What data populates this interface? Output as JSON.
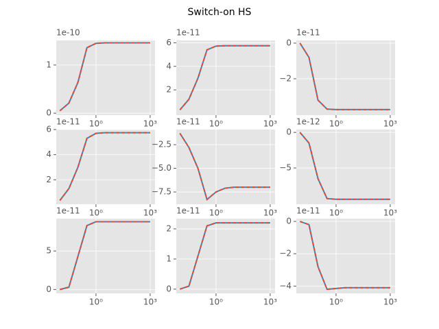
{
  "title": "Switch-on HS",
  "chart_data": [
    {
      "type": "line",
      "offset_label": "1e-10",
      "log_x": true,
      "grid": true,
      "x": [
        0.01,
        0.0316,
        0.1,
        0.316,
        1,
        3.16,
        10,
        31.6,
        100,
        1000
      ],
      "xlim": [
        0.0063,
        1860
      ],
      "xticks": [
        {
          "value": 1,
          "label": "10⁰"
        },
        {
          "value": 1000,
          "label": "10³"
        }
      ],
      "ylim": [
        -0.04,
        1.51
      ],
      "yticks": [
        0,
        1
      ],
      "series": [
        {
          "color": "#348ABD",
          "values": [
            0.05,
            0.21,
            0.64,
            1.36,
            1.45,
            1.46,
            1.46,
            1.46,
            1.46,
            1.46
          ]
        },
        {
          "color": "#E24A33",
          "dashed": true,
          "values": [
            0.05,
            0.21,
            0.64,
            1.36,
            1.45,
            1.46,
            1.46,
            1.46,
            1.46,
            1.46
          ]
        }
      ]
    },
    {
      "type": "line",
      "offset_label": "1e-11",
      "log_x": true,
      "grid": true,
      "x": [
        0.01,
        0.0316,
        0.1,
        0.316,
        1,
        3.16,
        10,
        31.6,
        100,
        1000
      ],
      "xlim": [
        0.0063,
        1860
      ],
      "xticks": [
        {
          "value": 1,
          "label": "10⁰"
        },
        {
          "value": 1000,
          "label": "10³"
        }
      ],
      "ylim": [
        -0.15,
        6.2
      ],
      "yticks": [
        2,
        4,
        6
      ],
      "series": [
        {
          "color": "#348ABD",
          "values": [
            0.3,
            1.2,
            3.0,
            5.4,
            5.72,
            5.75,
            5.75,
            5.75,
            5.75,
            5.75
          ]
        },
        {
          "color": "#E24A33",
          "dashed": true,
          "values": [
            0.3,
            1.2,
            3.0,
            5.4,
            5.72,
            5.75,
            5.75,
            5.75,
            5.75,
            5.75
          ]
        }
      ]
    },
    {
      "type": "line",
      "offset_label": "1e-11",
      "log_x": true,
      "grid": true,
      "x": [
        0.01,
        0.0316,
        0.1,
        0.316,
        1,
        3.16,
        10,
        31.6,
        100,
        1000
      ],
      "xlim": [
        0.0063,
        1860
      ],
      "xticks": [
        {
          "value": 1,
          "label": "10⁰"
        },
        {
          "value": 1000,
          "label": "10³"
        }
      ],
      "ylim": [
        -4.04,
        0.15
      ],
      "yticks": [
        {
          "value": -2,
          "label": "−2"
        },
        0
      ],
      "series": [
        {
          "color": "#348ABD",
          "values": [
            0,
            -0.8,
            -3.2,
            -3.7,
            -3.73,
            -3.73,
            -3.73,
            -3.73,
            -3.73,
            -3.73
          ]
        },
        {
          "color": "#E24A33",
          "dashed": true,
          "values": [
            0,
            -0.8,
            -3.2,
            -3.7,
            -3.73,
            -3.73,
            -3.73,
            -3.73,
            -3.73,
            -3.73
          ]
        }
      ]
    },
    {
      "type": "line",
      "offset_label": "1e-11",
      "log_x": true,
      "grid": true,
      "x": [
        0.01,
        0.0316,
        0.1,
        0.316,
        1,
        3.16,
        10,
        31.6,
        100,
        1000
      ],
      "xlim": [
        0.0063,
        1860
      ],
      "xticks": [
        {
          "value": 1,
          "label": "10⁰"
        },
        {
          "value": 1000,
          "label": "10³"
        }
      ],
      "ylim": [
        0.05,
        6.0
      ],
      "yticks": [
        2,
        4,
        6
      ],
      "series": [
        {
          "color": "#348ABD",
          "values": [
            0.35,
            1.3,
            3.0,
            5.3,
            5.7,
            5.75,
            5.75,
            5.75,
            5.75,
            5.75
          ]
        },
        {
          "color": "#E24A33",
          "dashed": true,
          "values": [
            0.35,
            1.3,
            3.0,
            5.3,
            5.7,
            5.75,
            5.75,
            5.75,
            5.75,
            5.75
          ]
        }
      ]
    },
    {
      "type": "line",
      "offset_label": "1e-11",
      "log_x": true,
      "grid": true,
      "x": [
        0.01,
        0.0316,
        0.1,
        0.316,
        1,
        3.16,
        10,
        31.6,
        100,
        1000
      ],
      "xlim": [
        0.0063,
        1860
      ],
      "xticks": [
        {
          "value": 1,
          "label": "10⁰"
        },
        {
          "value": 1000,
          "label": "10³"
        }
      ],
      "ylim": [
        -8.8,
        -0.9
      ],
      "yticks": [
        {
          "value": -7.5,
          "label": "−7.5"
        },
        {
          "value": -5.0,
          "label": "−5.0"
        },
        {
          "value": -2.5,
          "label": "−2.5"
        }
      ],
      "series": [
        {
          "color": "#348ABD",
          "values": [
            -1.3,
            -2.8,
            -5.0,
            -8.3,
            -7.5,
            -7.1,
            -7.0,
            -7.0,
            -7.0,
            -7.0
          ]
        },
        {
          "color": "#E24A33",
          "dashed": true,
          "values": [
            -1.3,
            -2.8,
            -5.0,
            -8.3,
            -7.5,
            -7.1,
            -7.0,
            -7.0,
            -7.0,
            -7.0
          ]
        }
      ]
    },
    {
      "type": "line",
      "offset_label": "1e-12",
      "log_x": true,
      "grid": true,
      "x": [
        0.01,
        0.0316,
        0.1,
        0.316,
        1,
        3.16,
        10,
        31.6,
        100,
        1000
      ],
      "xlim": [
        0.0063,
        1860
      ],
      "xticks": [
        {
          "value": 1,
          "label": "10⁰"
        },
        {
          "value": 1000,
          "label": "10³"
        }
      ],
      "ylim": [
        -10.1,
        0.4
      ],
      "yticks": [
        {
          "value": -5,
          "label": "−5"
        },
        0
      ],
      "series": [
        {
          "color": "#348ABD",
          "values": [
            0,
            -1.5,
            -6.5,
            -9.3,
            -9.4,
            -9.4,
            -9.4,
            -9.4,
            -9.4,
            -9.4
          ]
        },
        {
          "color": "#E24A33",
          "dashed": true,
          "values": [
            0,
            -1.5,
            -6.5,
            -9.3,
            -9.4,
            -9.4,
            -9.4,
            -9.4,
            -9.4,
            -9.4
          ]
        }
      ]
    },
    {
      "type": "line",
      "offset_label": "1e-11",
      "log_x": true,
      "grid": true,
      "x": [
        0.01,
        0.0316,
        0.1,
        0.316,
        1,
        3.16,
        10,
        31.6,
        100,
        1000
      ],
      "xlim": [
        0.0063,
        1860
      ],
      "xticks": [
        {
          "value": 1,
          "label": "10⁰"
        },
        {
          "value": 1000,
          "label": "10³"
        }
      ],
      "ylim": [
        -0.5,
        9.2
      ],
      "yticks": [
        0,
        5
      ],
      "series": [
        {
          "color": "#348ABD",
          "values": [
            0,
            0.3,
            4.3,
            8.3,
            8.8,
            8.8,
            8.8,
            8.8,
            8.8,
            8.8
          ]
        },
        {
          "color": "#E24A33",
          "dashed": true,
          "values": [
            0,
            0.3,
            4.3,
            8.3,
            8.8,
            8.8,
            8.8,
            8.8,
            8.8,
            8.8
          ]
        }
      ]
    },
    {
      "type": "line",
      "offset_label": "1e-11",
      "log_x": true,
      "grid": true,
      "x": [
        0.01,
        0.0316,
        0.1,
        0.316,
        1,
        3.16,
        10,
        31.6,
        100,
        1000
      ],
      "xlim": [
        0.0063,
        1860
      ],
      "xticks": [
        {
          "value": 1,
          "label": "10⁰"
        },
        {
          "value": 1000,
          "label": "10³"
        }
      ],
      "ylim": [
        -0.14,
        2.34
      ],
      "yticks": [
        0,
        1,
        2
      ],
      "series": [
        {
          "color": "#348ABD",
          "values": [
            0,
            0.1,
            1.1,
            2.1,
            2.2,
            2.2,
            2.2,
            2.2,
            2.2,
            2.2
          ]
        },
        {
          "color": "#E24A33",
          "dashed": true,
          "values": [
            0,
            0.1,
            1.1,
            2.1,
            2.2,
            2.2,
            2.2,
            2.2,
            2.2,
            2.2
          ]
        }
      ]
    },
    {
      "type": "line",
      "offset_label": "1e-11",
      "log_x": true,
      "grid": true,
      "x": [
        0.01,
        0.0316,
        0.1,
        0.316,
        1,
        3.16,
        10,
        31.6,
        100,
        1000
      ],
      "xlim": [
        0.0063,
        1860
      ],
      "xticks": [
        {
          "value": 1,
          "label": "10⁰"
        },
        {
          "value": 1000,
          "label": "10³"
        }
      ],
      "ylim": [
        -4.45,
        0.17
      ],
      "yticks": [
        {
          "value": -4,
          "label": "−4"
        },
        {
          "value": -2,
          "label": "−2"
        },
        0
      ],
      "series": [
        {
          "color": "#348ABD",
          "values": [
            0,
            -0.2,
            -2.8,
            -4.2,
            -4.15,
            -4.1,
            -4.1,
            -4.1,
            -4.1,
            -4.1
          ]
        },
        {
          "color": "#E24A33",
          "dashed": true,
          "values": [
            0,
            -0.2,
            -2.8,
            -4.2,
            -4.15,
            -4.1,
            -4.1,
            -4.1,
            -4.1,
            -4.1
          ]
        }
      ]
    }
  ]
}
